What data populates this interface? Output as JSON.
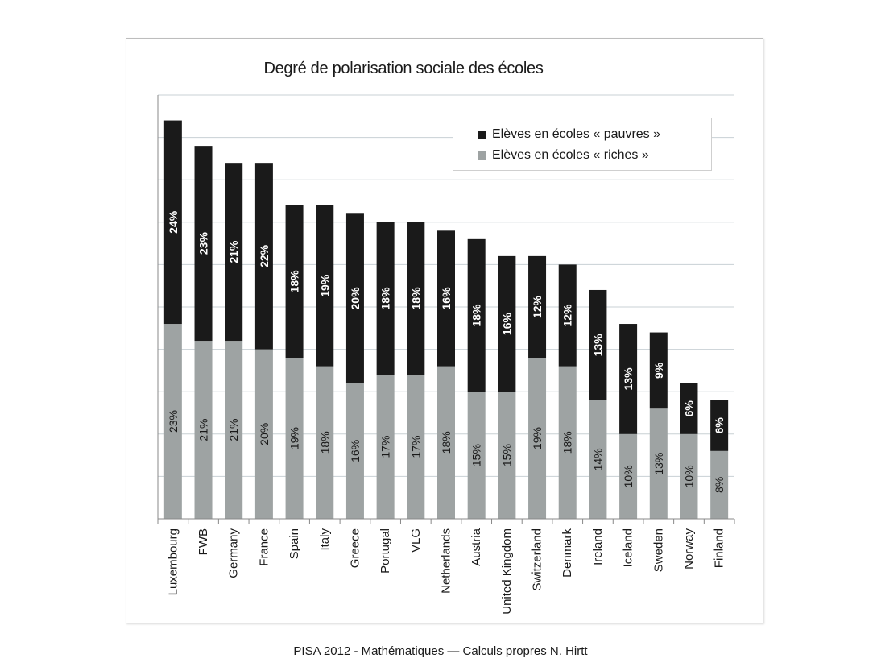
{
  "caption": "PISA 2012 - Mathématiques — Calculs propres N. Hirtt",
  "colors": {
    "poor": "#1a1a1a",
    "rich": "#9ea3a3",
    "grid": "#c8d0d4"
  },
  "chart_data": {
    "type": "bar",
    "stacked": true,
    "title": "Degré de polarisation sociale des écoles",
    "legend_position": "top-right",
    "grid": true,
    "categories": [
      "Luxembourg",
      "FWB",
      "Germany",
      "France",
      "Spain",
      "Italy",
      "Greece",
      "Portugal",
      "VLG",
      "Netherlands",
      "Austria",
      "United Kingdom",
      "Switzerland",
      "Denmark",
      "Ireland",
      "Iceland",
      "Sweden",
      "Norway",
      "Finland"
    ],
    "series": [
      {
        "name": "Elèves en écoles  « riches »",
        "values": [
          23,
          21,
          21,
          20,
          19,
          18,
          16,
          17,
          17,
          18,
          15,
          15,
          19,
          18,
          14,
          10,
          13,
          10,
          8
        ],
        "color": "#9ea3a3"
      },
      {
        "name": "Elèves en écoles « pauvres »",
        "values": [
          24,
          23,
          21,
          22,
          18,
          19,
          20,
          18,
          18,
          16,
          18,
          16,
          12,
          12,
          13,
          13,
          9,
          6,
          6
        ],
        "color": "#1a1a1a"
      }
    ],
    "data_labels": {
      "rich": [
        "23%",
        "21%",
        "21%",
        "20%",
        "19%",
        "18%",
        "16%",
        "17%",
        "17%",
        "18%",
        "15%",
        "15%",
        "19%",
        "18%",
        "14%",
        "10%",
        "13%",
        "10%",
        "8%"
      ],
      "poor": [
        "24%",
        "23%",
        "21%",
        "22%",
        "18%",
        "19%",
        "20%",
        "18%",
        "18%",
        "16%",
        "18%",
        "16%",
        "12%",
        "12%",
        "13%",
        "13%",
        "9%",
        "6%",
        "6%"
      ]
    },
    "ylim": [
      0,
      50
    ]
  }
}
